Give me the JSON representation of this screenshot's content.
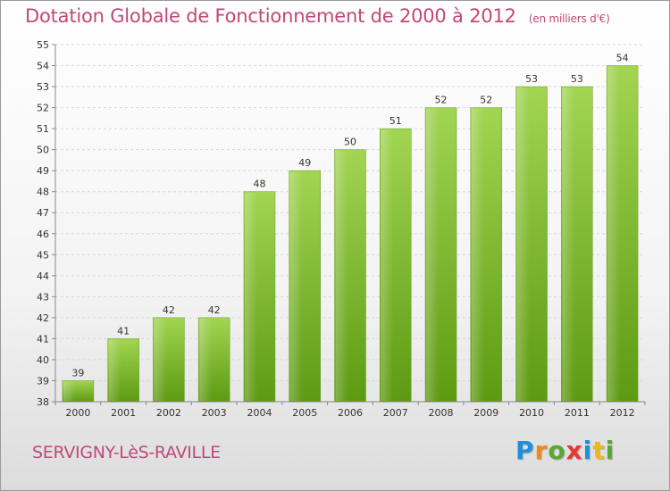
{
  "header": {
    "title": "Dotation Globale de Fonctionnement de 2000 à 2012",
    "subtitle": "(en milliers d'€)"
  },
  "footer": {
    "commune": "SERVIGNY-LèS-RAVILLE",
    "logo_letters": [
      "P",
      "r",
      "o",
      "x",
      "i",
      "t",
      "i"
    ]
  },
  "colors": {
    "title": "#c0487a",
    "bar_top": "#9fd04e",
    "bar_bottom": "#5d9a12"
  },
  "chart_data": {
    "type": "bar",
    "title": "Dotation Globale de Fonctionnement de 2000 à 2012",
    "subtitle": "(en milliers d'€)",
    "xlabel": "",
    "ylabel": "",
    "categories": [
      "2000",
      "2001",
      "2002",
      "2003",
      "2004",
      "2005",
      "2006",
      "2007",
      "2008",
      "2009",
      "2010",
      "2011",
      "2012"
    ],
    "values": [
      39,
      41,
      42,
      42,
      48,
      49,
      50,
      51,
      52,
      52,
      53,
      53,
      54
    ],
    "ylim": [
      38,
      55
    ],
    "yticks": [
      38,
      39,
      40,
      41,
      42,
      43,
      44,
      45,
      46,
      47,
      48,
      49,
      50,
      51,
      52,
      53,
      54,
      55
    ],
    "grid": true,
    "legend": "none"
  }
}
